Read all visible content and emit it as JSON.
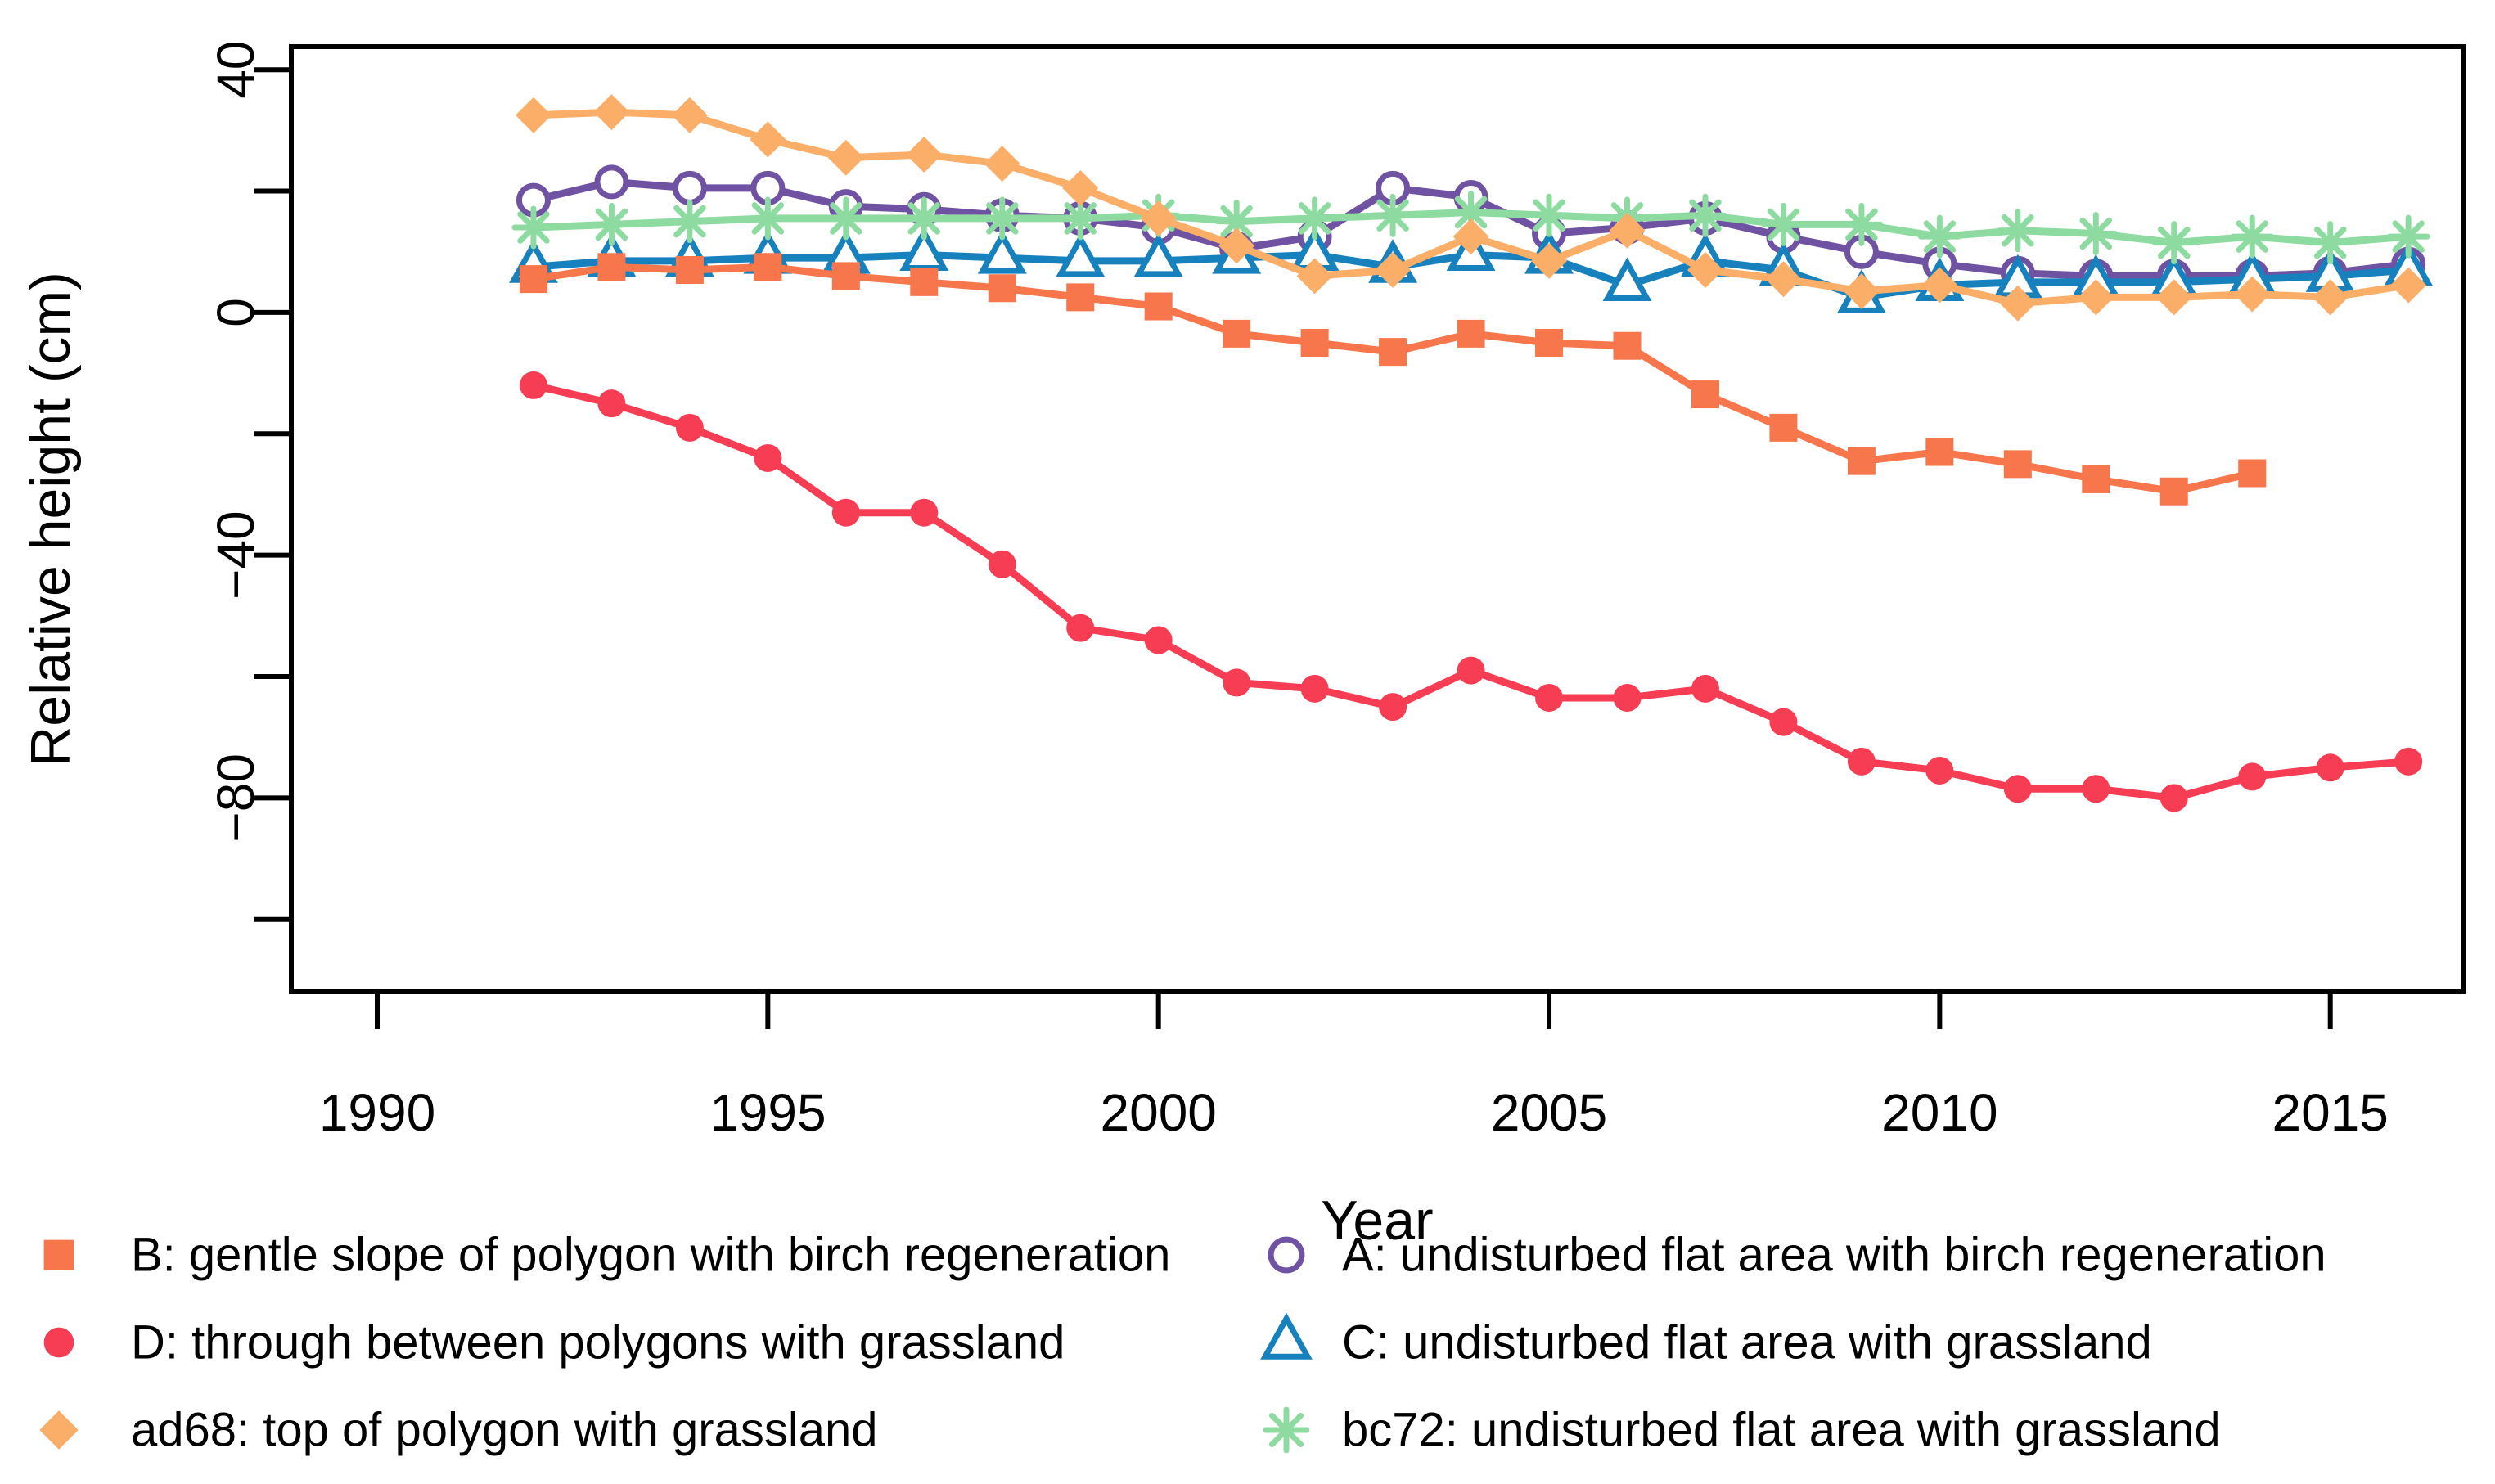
{
  "figure": {
    "background": "#ffffff",
    "axis_color": "#000000"
  },
  "chart_data": {
    "type": "line",
    "title": "",
    "xlabel": "Year",
    "ylabel": "Relative height (cm)",
    "xlim": [
      1988.9,
      2016.7
    ],
    "ylim": [
      -111.9,
      43.8
    ],
    "grid": "off",
    "legend_position": "bottom-two-columns",
    "x_ticks": [
      1990,
      1995,
      2000,
      2005,
      2010,
      2015
    ],
    "x_tick_labels": [
      "1990",
      "1995",
      "2000",
      "2005",
      "2010",
      "2015"
    ],
    "y_ticks": [
      40,
      20,
      0,
      -20,
      -40,
      -60,
      -80,
      -100
    ],
    "y_tick_labels": [
      "40",
      "",
      "0",
      "",
      "−40",
      "",
      "−80",
      ""
    ],
    "series": [
      {
        "name": "B",
        "label": "B: gentle slope of polygon with birch regeneration",
        "color": "#F8764B",
        "marker": "filled-square",
        "z": 4,
        "x": [
          1992,
          1993,
          1994,
          1995,
          1996,
          1997,
          1998,
          1999,
          2000,
          2001,
          2002,
          2003,
          2004,
          2005,
          2006,
          2007,
          2008,
          2009,
          2010,
          2011,
          2012,
          2013,
          2014
        ],
        "y": [
          5.5,
          7.5,
          7,
          7.5,
          6,
          5,
          4,
          2.5,
          1,
          -3.5,
          -5,
          -6.5,
          -3.5,
          -5,
          -5.5,
          -13.5,
          -19,
          -24.5,
          -23,
          -25,
          -27.5,
          -29.5,
          -26.5
        ]
      },
      {
        "name": "D",
        "label": "D: through between polygons with grassland",
        "color": "#F73D54",
        "marker": "filled-circle",
        "z": 5,
        "x": [
          1992,
          1993,
          1994,
          1995,
          1996,
          1997,
          1998,
          1999,
          2000,
          2001,
          2002,
          2003,
          2004,
          2005,
          2006,
          2007,
          2008,
          2009,
          2010,
          2011,
          2012,
          2013,
          2014,
          2015,
          2016
        ],
        "y": [
          -12,
          -15,
          -19,
          -24,
          -33,
          -33,
          -41.5,
          -52,
          -54,
          -61,
          -62,
          -65,
          -59,
          -63.5,
          -63.5,
          -62,
          -67.5,
          -74,
          -75.5,
          -78.5,
          -78.5,
          -80,
          -76.5,
          -75,
          -74
        ]
      },
      {
        "name": "ad68",
        "label": "ad68: top of polygon with grassland",
        "color": "#FBAE67",
        "marker": "filled-diamond",
        "z": 6,
        "x": [
          1992,
          1993,
          1994,
          1995,
          1996,
          1997,
          1998,
          1999,
          2000,
          2001,
          2002,
          2003,
          2004,
          2005,
          2006,
          2007,
          2008,
          2009,
          2010,
          2011,
          2012,
          2013,
          2014,
          2015,
          2016
        ],
        "y": [
          32.5,
          33,
          32.5,
          28.5,
          25.5,
          26,
          24.5,
          20.5,
          15.5,
          11,
          6,
          7,
          12.5,
          8.5,
          13.5,
          7,
          5.5,
          3.5,
          4.5,
          1.5,
          2.5,
          2.5,
          3,
          2.5,
          4.5
        ]
      },
      {
        "name": "A",
        "label": "A: undisturbed flat area with birch regeneration",
        "color": "#7052A3",
        "marker": "open-circle",
        "z": 1,
        "x": [
          1992,
          1993,
          1994,
          1995,
          1996,
          1997,
          1998,
          1999,
          2000,
          2001,
          2002,
          2003,
          2004,
          2005,
          2006,
          2007,
          2008,
          2009,
          2010,
          2011,
          2012,
          2013,
          2014,
          2015,
          2016
        ],
        "y": [
          18.5,
          21.5,
          20.5,
          20.5,
          17.5,
          17,
          16,
          15.5,
          14,
          10.5,
          12.5,
          20.5,
          19,
          13,
          14,
          15.5,
          12.5,
          10,
          8,
          6.5,
          6,
          6,
          6,
          6.5,
          8
        ]
      },
      {
        "name": "C",
        "label": "C: undisturbed flat area with grassland",
        "color": "#1781BE",
        "marker": "open-triangle",
        "z": 2,
        "x": [
          1992,
          1993,
          1994,
          1995,
          1996,
          1997,
          1998,
          1999,
          2000,
          2001,
          2002,
          2003,
          2004,
          2005,
          2006,
          2007,
          2008,
          2009,
          2010,
          2011,
          2012,
          2013,
          2014,
          2015,
          2016
        ],
        "y": [
          7.5,
          8.5,
          8.5,
          9,
          9,
          9.5,
          9,
          8.5,
          8.5,
          9,
          9.5,
          7.5,
          9.5,
          9,
          4.5,
          8.5,
          7,
          2.5,
          4.5,
          5,
          5,
          5,
          5.5,
          6,
          7
        ]
      },
      {
        "name": "bc72",
        "label": "bc72: undisturbed flat area with grassland",
        "color": "#8EDBA2",
        "marker": "asterisk",
        "z": 3,
        "x": [
          1992,
          1993,
          1994,
          1995,
          1996,
          1997,
          1998,
          1999,
          2000,
          2001,
          2002,
          2003,
          2004,
          2005,
          2006,
          2007,
          2008,
          2009,
          2010,
          2011,
          2012,
          2013,
          2014,
          2015,
          2016
        ],
        "y": [
          14,
          14.5,
          15,
          15.5,
          15.5,
          15.5,
          15.5,
          15.5,
          16,
          15,
          15.5,
          16,
          16.5,
          16,
          15.5,
          16,
          14.5,
          14.5,
          12.5,
          13.5,
          13,
          11.5,
          12.5,
          11.5,
          12.5
        ]
      }
    ]
  },
  "legend": {
    "columns": [
      {
        "series": [
          "B",
          "D",
          "ad68"
        ]
      },
      {
        "series": [
          "A",
          "C",
          "bc72"
        ]
      }
    ]
  }
}
